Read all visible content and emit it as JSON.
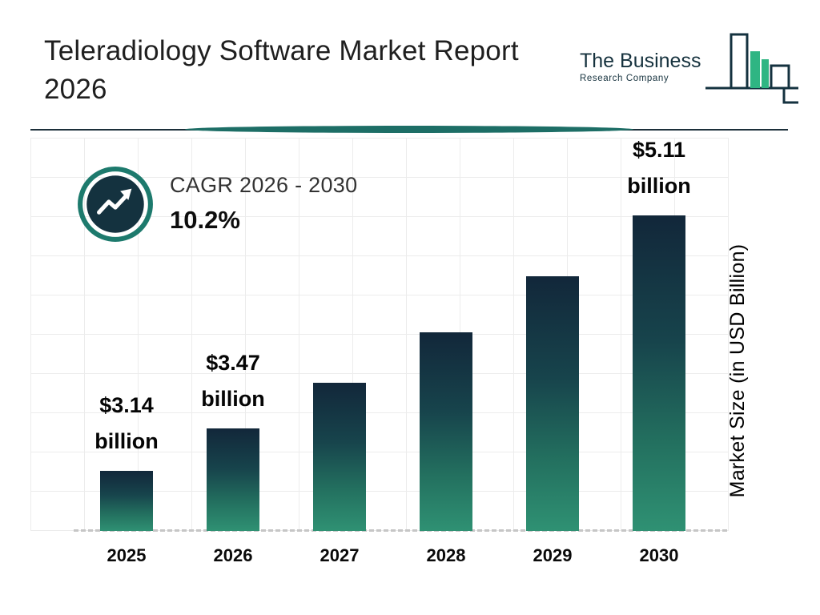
{
  "header": {
    "title": "Teleradiology Software Market Report 2026"
  },
  "logo": {
    "name": "The Business",
    "subtitle": "Research Company"
  },
  "cagr": {
    "label": "CAGR 2026 - 2030",
    "value": "10.2%"
  },
  "chart_data": {
    "type": "bar",
    "title": "Teleradiology Software Market Report 2026",
    "categories": [
      "2025",
      "2026",
      "2027",
      "2028",
      "2029",
      "2030"
    ],
    "values": [
      3.14,
      3.47,
      3.82,
      4.21,
      4.64,
      5.11
    ],
    "bar_labels": [
      "$3.14 billion",
      "$3.47 billion",
      "",
      "",
      "",
      "$5.11 billion"
    ],
    "unit": "USD Billion",
    "ylabel": "Market Size (in USD Billion)",
    "xlabel": "",
    "grid": true,
    "baseline_style": "dashed",
    "legend": "none",
    "colors": {
      "bar_top": "#12273a",
      "bar_bottom": "#2f9173",
      "accent_teal": "#1d6e66",
      "navy": "#14323f",
      "logo_green": "#2fb583"
    }
  }
}
